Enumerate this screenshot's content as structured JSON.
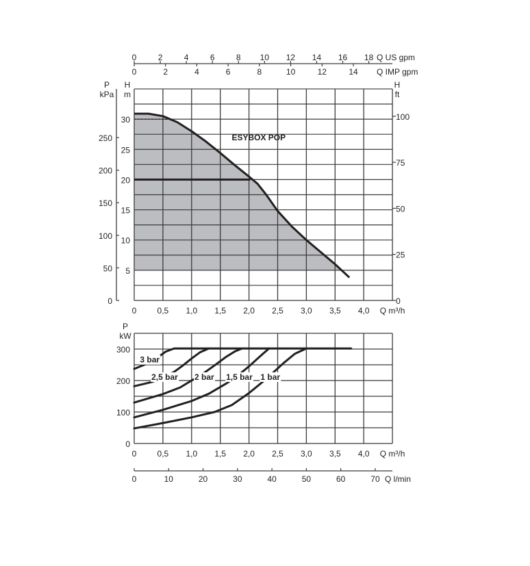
{
  "chart_data": [
    {
      "type": "line",
      "title": "ESYBOX POP",
      "xlabel": "Q m³/h",
      "ylabel": "H m",
      "xlim": [
        0,
        4.5
      ],
      "ylim": [
        0,
        35
      ],
      "x_ticks": [
        "0",
        "0,5",
        "1,0",
        "1,5",
        "2,0",
        "2,5",
        "3,0",
        "3,5",
        "4,0"
      ],
      "x_tick_values": [
        0,
        0.5,
        1.0,
        1.5,
        2.0,
        2.5,
        3.0,
        3.5,
        4.0
      ],
      "y_ticks": [
        0,
        5,
        10,
        15,
        20,
        25,
        30
      ],
      "grid": true,
      "shaded_area_min_H": 5,
      "series": [
        {
          "name": "ESYBOX POP",
          "x": [
            0,
            0.25,
            0.5,
            0.75,
            1.0,
            1.25,
            1.5,
            1.75,
            2.0,
            2.15,
            2.3,
            2.5,
            2.75,
            3.0,
            3.25,
            3.5,
            3.75
          ],
          "y": [
            30.9,
            30.9,
            30.5,
            29.5,
            28.0,
            26.3,
            24.4,
            22.4,
            20.5,
            19.3,
            17.5,
            14.8,
            12.2,
            10.0,
            8.0,
            6.0,
            3.8
          ]
        }
      ],
      "axes": {
        "kpa": {
          "label_top": "P",
          "label_bottom": "kPa",
          "ticks": [
            0,
            50,
            100,
            150,
            200,
            250
          ]
        },
        "h_m": {
          "label_top": "H",
          "label_bottom": "m"
        },
        "h_ft": {
          "label_top": "H",
          "label_bottom": "ft",
          "ticks": [
            0,
            25,
            50,
            75,
            100
          ]
        },
        "us_gpm": {
          "label": "Q US gpm",
          "ticks": [
            0,
            2,
            4,
            6,
            8,
            10,
            12,
            14,
            16,
            18
          ]
        },
        "imp_gpm": {
          "label": "Q IMP gpm",
          "ticks": [
            0,
            2,
            4,
            6,
            8,
            10,
            12,
            14
          ]
        }
      }
    },
    {
      "type": "line",
      "xlabel": "Q m³/h",
      "ylabel_top": "P",
      "ylabel": "kW",
      "xlim": [
        0,
        4.5
      ],
      "ylim": [
        0,
        350
      ],
      "x_ticks": [
        "0",
        "0,5",
        "1,0",
        "1,5",
        "2,0",
        "2,5",
        "3,0",
        "3,5",
        "4,0"
      ],
      "x_tick_values": [
        0,
        0.5,
        1.0,
        1.5,
        2.0,
        2.5,
        3.0,
        3.5,
        4.0
      ],
      "y_ticks": [
        0,
        100,
        200,
        300
      ],
      "grid": true,
      "series": [
        {
          "name": "3 bar",
          "x": [
            0,
            0.2,
            0.4,
            0.55,
            0.7,
            3.78
          ],
          "y": [
            237,
            252,
            272,
            292,
            302,
            302
          ]
        },
        {
          "name": "2,5 bar",
          "x": [
            0,
            0.3,
            0.5,
            0.7,
            0.85,
            1.0,
            1.15,
            1.3
          ],
          "y": [
            182,
            195,
            208,
            228,
            248,
            270,
            290,
            302
          ]
        },
        {
          "name": "2 bar",
          "x": [
            0,
            0.5,
            0.8,
            1.0,
            1.2,
            1.4,
            1.6,
            1.75,
            1.88
          ],
          "y": [
            130,
            157,
            178,
            200,
            222,
            248,
            275,
            292,
            302
          ]
        },
        {
          "name": "1,5 bar",
          "x": [
            0,
            0.5,
            1.0,
            1.3,
            1.6,
            1.8,
            2.0,
            2.2,
            2.35
          ],
          "y": [
            83,
            107,
            135,
            158,
            190,
            215,
            245,
            278,
            302
          ]
        },
        {
          "name": "1 bar",
          "x": [
            0,
            0.5,
            1.0,
            1.4,
            1.7,
            2.0,
            2.3,
            2.6,
            2.8,
            3.0
          ],
          "y": [
            48,
            65,
            83,
            100,
            122,
            160,
            205,
            255,
            285,
            302
          ]
        }
      ],
      "axes": {
        "l_min": {
          "label": "Q l/min",
          "ticks": [
            0,
            10,
            20,
            30,
            40,
            50,
            60,
            70
          ]
        }
      }
    }
  ]
}
